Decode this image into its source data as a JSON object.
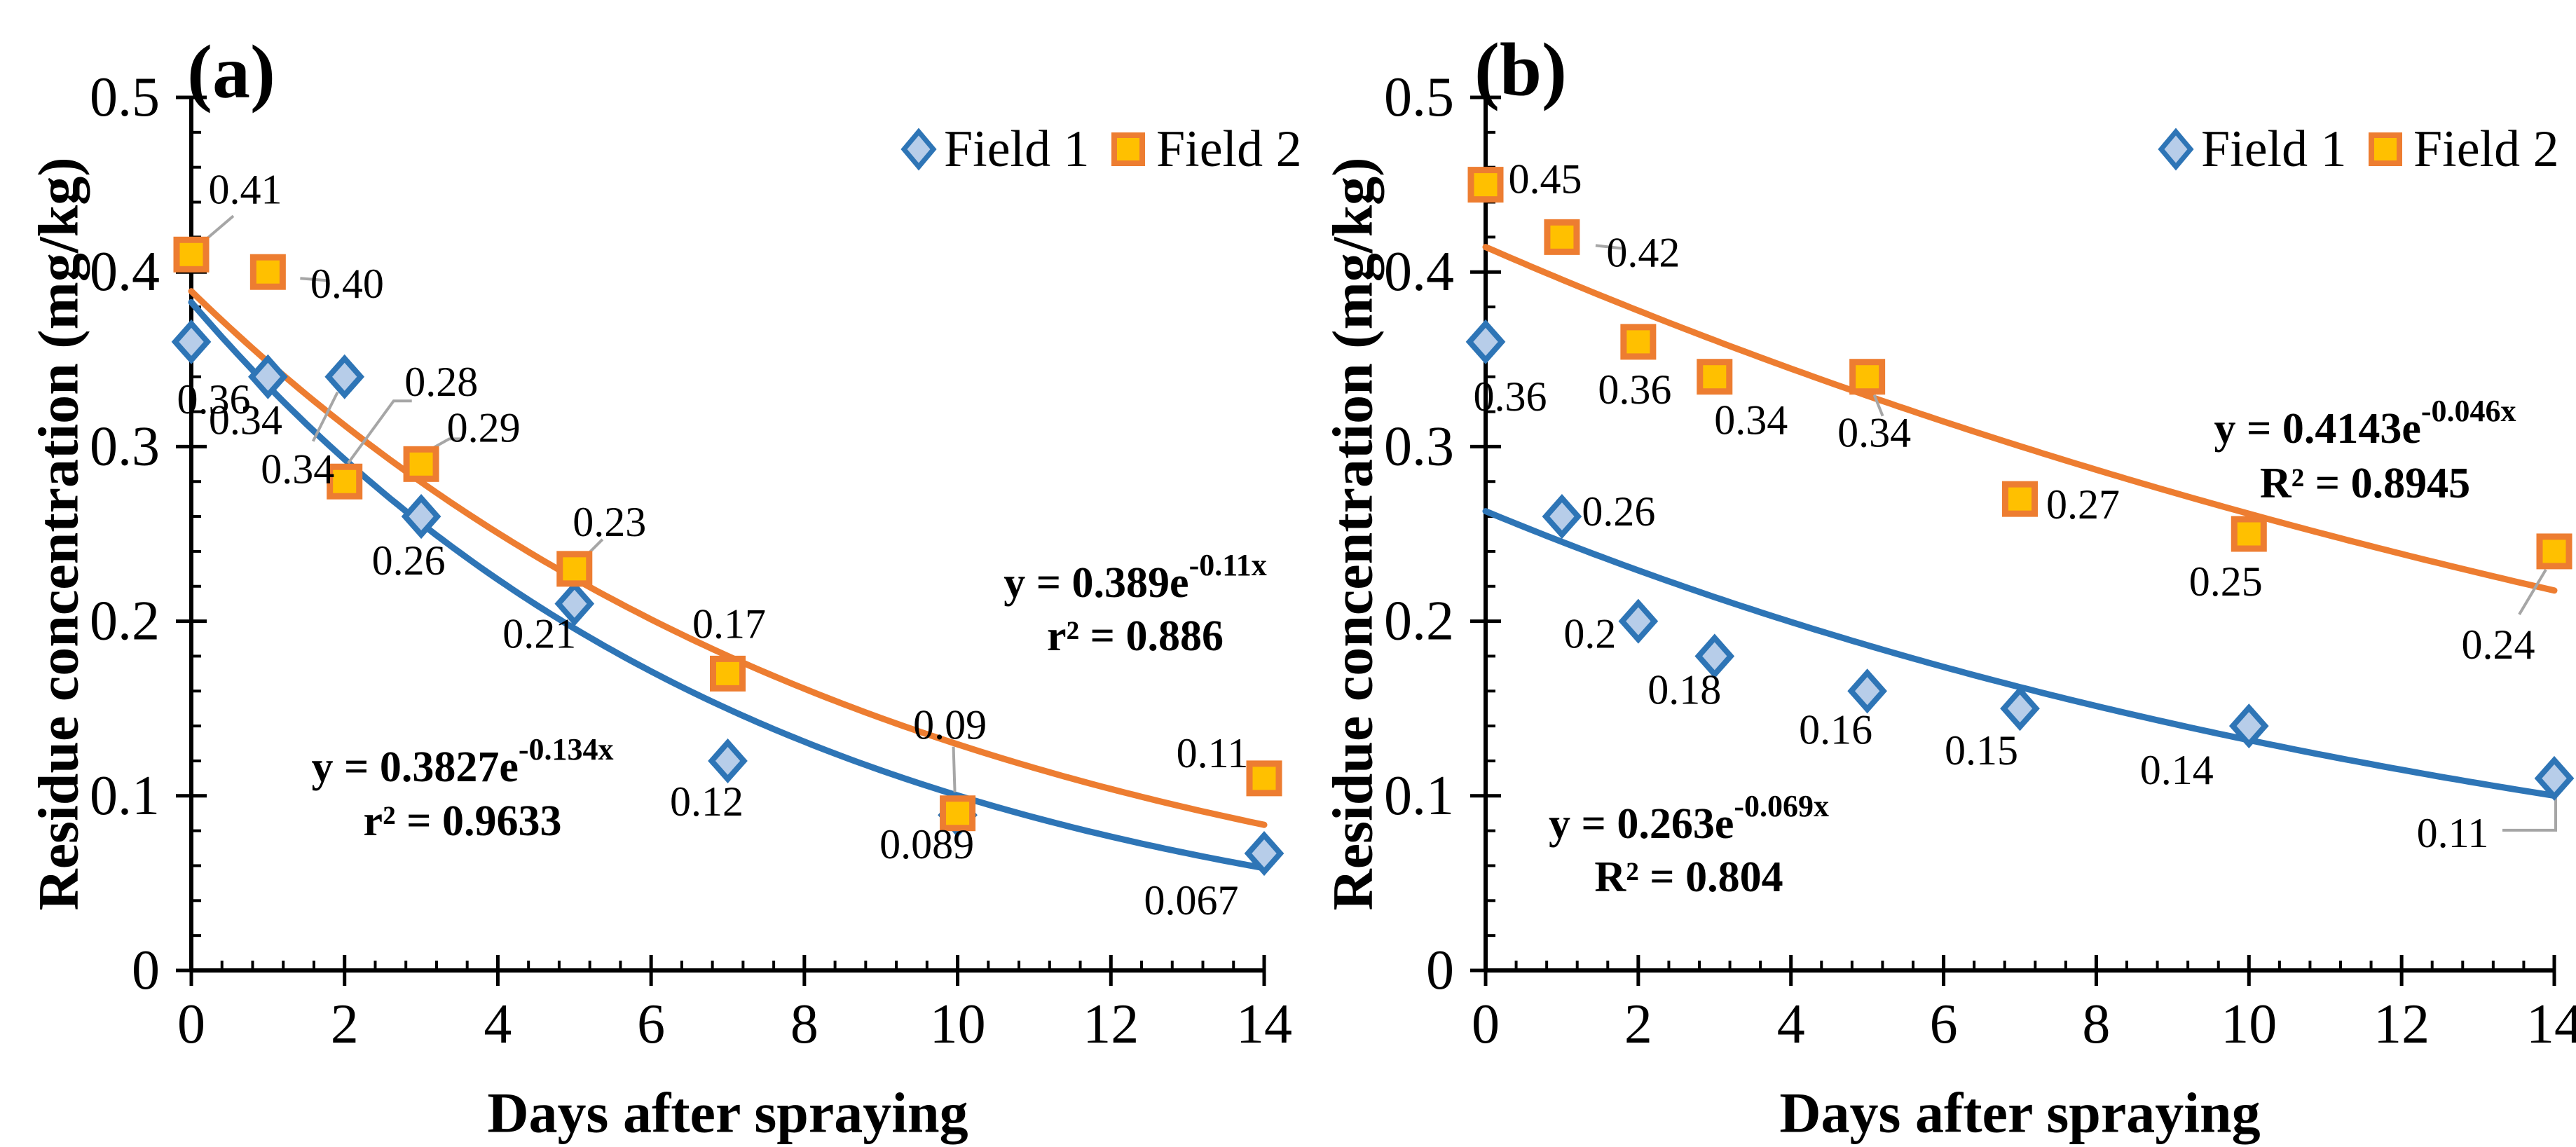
{
  "figure": {
    "colors": {
      "field1_line": "#2E75B6",
      "field1_fill": "#B7CDE9",
      "field2_line": "#ED7D31",
      "field2_fill": "#FFC000",
      "leader": "#A6A6A6",
      "axis": "#000000"
    }
  },
  "legend": {
    "items": [
      {
        "label": "Field 1",
        "marker": "diamond",
        "series": "field1"
      },
      {
        "label": "Field 2",
        "marker": "square",
        "series": "field2"
      }
    ]
  },
  "chart_data": [
    {
      "id": "a",
      "panel_label": "(a)",
      "type": "scatter",
      "xlabel": "Days after spraying",
      "ylabel": "Residue concentration (mg/kg)",
      "xlim": [
        0,
        14
      ],
      "ylim": [
        0,
        0.5
      ],
      "x_ticks": [
        0,
        2,
        4,
        6,
        8,
        10,
        12,
        14
      ],
      "x_tick_labels": [
        "0",
        "2",
        "4",
        "6",
        "8",
        "10",
        "12",
        "14"
      ],
      "y_ticks": [
        0,
        0.1,
        0.2,
        0.3,
        0.4,
        0.5
      ],
      "y_tick_labels": [
        "0",
        "0.1",
        "0.2",
        "0.3",
        "0.4",
        "0.5"
      ],
      "x_minor_step": 0.4,
      "y_minor_step": 0.02,
      "grid": false,
      "legend_position": "top-right",
      "series": [
        {
          "name": "Field 1",
          "key": "field1",
          "marker": "diamond",
          "x": [
            0,
            1,
            2,
            3,
            5,
            7,
            10,
            14
          ],
          "y": [
            0.36,
            0.34,
            0.34,
            0.26,
            0.21,
            0.12,
            0.089,
            0.067
          ],
          "labels": [
            "0.36",
            "0.34",
            "0.34",
            "0.26",
            "0.21",
            "0.12",
            "0.089",
            "0.067"
          ],
          "label_offsets": [
            [
              32,
              82
            ],
            [
              -32,
              62
            ],
            [
              -67,
              132
            ],
            [
              -18,
              63
            ],
            [
              -50,
              43
            ],
            [
              -30,
              58
            ],
            [
              -44,
              42
            ],
            [
              -104,
              67
            ]
          ],
          "leaders": [
            null,
            null,
            [
              [
                -10,
                22
              ],
              [
                -45,
                92
              ]
            ],
            null,
            null,
            null,
            null,
            null
          ],
          "fit": {
            "a": 0.3827,
            "b": -0.134
          },
          "equation": {
            "base": "y = 0.3827e",
            "exponent": "-0.134x",
            "r2": "r² = 0.9633"
          },
          "equation_pos": {
            "cx": 660,
            "cy": 1095,
            "r2cy": 1172
          }
        },
        {
          "name": "Field 2",
          "key": "field2",
          "marker": "square",
          "x": [
            0,
            1,
            2,
            3,
            5,
            7,
            10,
            14
          ],
          "y": [
            0.41,
            0.4,
            0.28,
            0.29,
            0.23,
            0.17,
            0.09,
            0.11
          ],
          "labels": [
            "0.41",
            "0.40",
            "0.28",
            "0.29",
            "0.23",
            "0.17",
            "0.09",
            "0.11"
          ],
          "label_offsets": [
            [
              77,
              -93
            ],
            [
              113,
              17
            ],
            [
              138,
              -142
            ],
            [
              89,
              -52
            ],
            [
              50,
              -67
            ],
            [
              2,
              -71
            ],
            [
              -11,
              -126
            ],
            [
              -74,
              -36
            ]
          ],
          "leaders": [
            [
              [
                60,
                -55
              ],
              [
                12,
                -14
              ]
            ],
            [
              [
                84,
                12
              ],
              [
                46,
                9
              ]
            ],
            [
              [
                96,
                -115
              ],
              [
                70,
                -115
              ],
              [
                5,
                -26
              ]
            ],
            [
              [
                58,
                -36
              ],
              [
                40,
                -36
              ],
              [
                8,
                -18
              ]
            ],
            [
              [
                40,
                -42
              ],
              [
                12,
                -14
              ]
            ],
            null,
            [
              [
                -6,
                -95
              ],
              [
                -4,
                -30
              ]
            ],
            null
          ],
          "fit": {
            "a": 0.389,
            "b": -0.11
          },
          "equation": {
            "base": "y = 0.389e",
            "exponent": "-0.11x",
            "r2": "r² = 0.886"
          },
          "equation_pos": {
            "cx": 1620,
            "cy": 832,
            "r2cy": 908
          }
        }
      ]
    },
    {
      "id": "b",
      "panel_label": "(b)",
      "type": "scatter",
      "xlabel": "Days after spraying",
      "ylabel": "Residue concentration (mg/kg)",
      "xlim": [
        0,
        14
      ],
      "ylim": [
        0,
        0.5
      ],
      "x_ticks": [
        0,
        2,
        4,
        6,
        8,
        10,
        12,
        14
      ],
      "x_tick_labels": [
        "0",
        "2",
        "4",
        "6",
        "8",
        "10",
        "12",
        "14"
      ],
      "y_ticks": [
        0,
        0.1,
        0.2,
        0.3,
        0.4,
        0.5
      ],
      "y_tick_labels": [
        "0",
        "0.1",
        "0.2",
        "0.3",
        "0.4",
        "0.5"
      ],
      "x_minor_step": 0.4,
      "y_minor_step": 0.02,
      "grid": false,
      "legend_position": "top-right",
      "series": [
        {
          "name": "Field 1",
          "key": "field1",
          "marker": "diamond",
          "x": [
            0,
            1,
            2,
            3,
            5,
            7,
            10,
            14
          ],
          "y": [
            0.36,
            0.26,
            0.2,
            0.18,
            0.16,
            0.15,
            0.14,
            0.11
          ],
          "labels": [
            "0.36",
            "0.26",
            "0.2",
            "0.18",
            "0.16",
            "0.15",
            "0.14",
            "0.11"
          ],
          "label_offsets": [
            [
              35,
              78
            ],
            [
              81,
              -7
            ],
            [
              -69,
              18
            ],
            [
              -43,
              48
            ],
            [
              -45,
              55
            ],
            [
              -55,
              60
            ],
            [
              -103,
              63
            ],
            [
              -145,
              78
            ]
          ],
          "leaders": [
            null,
            null,
            null,
            null,
            null,
            null,
            null,
            [
              [
                2,
                26
              ],
              [
                2,
                74
              ],
              [
                -74,
                74
              ]
            ]
          ],
          "fit": {
            "a": 0.263,
            "b": -0.069
          },
          "equation": {
            "base": "y = 0.263e",
            "exponent": "-0.069x",
            "r2": "R² = 0.804"
          },
          "equation_pos": {
            "cx": 2410,
            "cy": 1176,
            "r2cy": 1252
          }
        },
        {
          "name": "Field 2",
          "key": "field2",
          "marker": "square",
          "x": [
            0,
            1,
            2,
            3,
            5,
            7,
            10,
            14
          ],
          "y": [
            0.45,
            0.42,
            0.36,
            0.34,
            0.34,
            0.27,
            0.25,
            0.24
          ],
          "labels": [
            "0.45",
            "0.42",
            "0.36",
            "0.34",
            "0.34",
            "0.27",
            "0.25",
            "0.24"
          ],
          "label_offsets": [
            [
              85,
              -8
            ],
            [
              116,
              22
            ],
            [
              -5,
              68
            ],
            [
              52,
              62
            ],
            [
              10,
              80
            ],
            [
              90,
              8
            ],
            [
              -33,
              68
            ],
            [
              -80,
              133
            ]
          ],
          "leaders": [
            null,
            [
              [
                85,
                16
              ],
              [
                48,
                12
              ]
            ],
            null,
            null,
            [
              [
                10,
                26
              ],
              [
                22,
                56
              ]
            ],
            null,
            null,
            [
              [
                -12,
                26
              ],
              [
                -50,
                90
              ]
            ]
          ],
          "fit": {
            "a": 0.4143,
            "b": -0.046
          },
          "equation": {
            "base": "y = 0.4143e",
            "exponent": "-0.046x",
            "r2": "R² = 0.8945"
          },
          "equation_pos": {
            "cx": 3375,
            "cy": 612,
            "r2cy": 690
          }
        }
      ]
    }
  ]
}
